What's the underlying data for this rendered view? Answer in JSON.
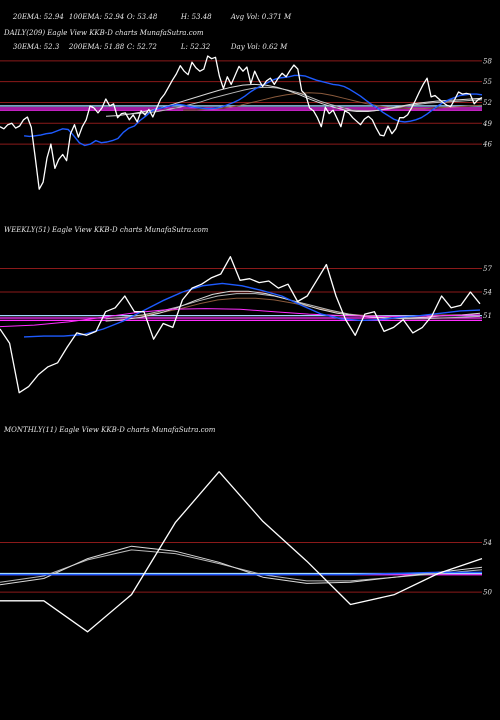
{
  "header": {
    "stats": [
      [
        "20EMA: 52.94",
        "100EMA: 52.94",
        "O: 53.48",
        "H: 53.48",
        "Avg Vol: 0.371 M"
      ],
      [
        "30EMA: 52.3",
        "200EMA: 51.88",
        "C: 52.72",
        "L: 52.32",
        "Day Vol: 0.62 M"
      ]
    ]
  },
  "colors": {
    "background": "#000000",
    "price_line": "#ffffff",
    "ema_fast": "#1e5bff",
    "ema_slow_1": "#d9d9d9",
    "ema_slow_2": "#b8b8b8",
    "ema_brown": "#8a5a3c",
    "support_magenta": "#ff2cff",
    "support_cyan": "#9fd6ff",
    "level_line": "#8b1a1a"
  },
  "chart_data": [
    {
      "type": "line",
      "title": "DAILY(209) Eagle  View  KKB-D charts MunafaSutra.com",
      "levels": [
        58,
        55,
        52,
        49,
        46
      ],
      "ylim": [
        36.5,
        61
      ],
      "support_levels": [
        50.9,
        51.2,
        51.5
      ],
      "price": [
        48.5,
        48.2,
        48.8,
        49,
        48.3,
        48.6,
        49.5,
        49.9,
        48.4,
        44,
        39.5,
        40.5,
        44,
        46,
        42.5,
        43.8,
        44.5,
        43.6,
        47.5,
        48.8,
        47,
        48.5,
        49.5,
        51.5,
        51.2,
        50.5,
        51.2,
        52.5,
        51.5,
        51.8,
        49.8,
        50.4,
        50.5,
        49.5,
        50.2,
        49.2,
        50.8,
        50.2,
        51,
        49.9,
        51.2,
        52.5,
        53.2,
        54.2,
        55.2,
        56.1,
        57.3,
        56.5,
        56,
        57.8,
        57,
        56.5,
        56.8,
        58.7,
        58.3,
        58.5,
        55.8,
        54,
        55.7,
        54.6,
        55.9,
        57.2,
        56.5,
        57.1,
        54.7,
        56.5,
        55.3,
        54.3,
        55.1,
        55.5,
        54.6,
        55.5,
        56.2,
        55.7,
        56.6,
        57.4,
        56.8,
        53.7,
        53.1,
        51.2,
        50.8,
        49.8,
        48.5,
        51.3,
        50.4,
        50.9,
        49.7,
        48.5,
        50.8,
        50.5,
        49.8,
        49.3,
        48.8,
        49.6,
        50,
        49.5,
        48.3,
        47.3,
        47.2,
        48.6,
        47.5,
        48.2,
        49.8,
        49.8,
        50.2,
        51.2,
        52.3,
        53.5,
        54.6,
        55.5,
        52.8,
        53,
        52.5,
        52,
        51.6,
        51.4,
        52.4,
        53.5,
        53.2,
        53.3,
        53.2,
        51.8,
        52.4,
        52.7
      ],
      "ema_fast": [
        47.2,
        47.1,
        47.2,
        47.3,
        47.5,
        47.6,
        47.9,
        48.2,
        48.1,
        47.2,
        46.2,
        45.8,
        46,
        46.5,
        46.2,
        46.3,
        46.5,
        46.8,
        47.7,
        48.3,
        48.6,
        49.4,
        50,
        50.7,
        51.1,
        51.2,
        51.4,
        51.6,
        51.7,
        51.6,
        51.4,
        51.3,
        51.2,
        51.1,
        51.1,
        51.2,
        51.4,
        51.7,
        52,
        52.4,
        52.9,
        53.5,
        54,
        54.4,
        54.8,
        55.2,
        55.5,
        55.6,
        55.7,
        55.9,
        55.9,
        55.8,
        55.5,
        55.2,
        55,
        54.8,
        54.6,
        54.5,
        54.3,
        53.9,
        53.4,
        52.9,
        52.3,
        51.7,
        51.2,
        50.6,
        50.1,
        49.6,
        49.3,
        49.2,
        49.3,
        49.5,
        49.8,
        50.3,
        50.9,
        51.5,
        52,
        52.4,
        52.7,
        53,
        53.1,
        53.2,
        53.2,
        53.1
      ],
      "ema_slow_1": [
        50,
        50.1,
        50.3,
        50.6,
        50.9,
        51.3,
        51.8,
        52.3,
        52.8,
        53.3,
        53.8,
        54.2,
        54.5,
        54.6,
        54.5,
        54.2,
        53.7,
        53.1,
        52.4,
        51.8,
        51.3,
        50.9,
        50.7,
        50.7,
        50.9,
        51.2,
        51.5,
        51.8,
        52,
        52.2,
        52.3,
        52.4,
        52.5,
        52.6
      ],
      "ema_slow_2": [
        50.3,
        50.4,
        50.5,
        50.7,
        51,
        51.3,
        51.7,
        52.1,
        52.6,
        53,
        53.4,
        53.8,
        54.1,
        54.2,
        54.1,
        53.8,
        53.4,
        52.8,
        52.2,
        51.7,
        51.3,
        50.9,
        50.8,
        50.8,
        51,
        51.2,
        51.5,
        51.7,
        51.9,
        52,
        52.1,
        52.2,
        52.3,
        52.4
      ],
      "ema_brown": [
        50.9,
        50.9,
        51,
        51.1,
        51.3,
        51.6,
        52,
        52.4,
        52.8,
        53.1,
        53.3,
        53.4,
        53.3,
        53,
        52.6,
        52.2,
        51.8,
        51.5,
        51.3,
        51.2,
        51.1,
        51.1,
        51.2,
        51.3,
        51.4,
        51.5,
        51.6
      ]
    },
    {
      "type": "line",
      "title": "WEEKLY(51) Eagle  View  KKB-D charts MunafaSutra.com",
      "levels": [
        57,
        54,
        51
      ],
      "ylim": [
        39,
        61
      ],
      "support_levels": [
        50.4,
        50.7,
        51.0
      ],
      "price": [
        49.3,
        47.5,
        41.2,
        42,
        43.5,
        44.5,
        45,
        47,
        48.8,
        48.5,
        49,
        51.5,
        52,
        53.5,
        51.5,
        51.5,
        48,
        50,
        49.5,
        53,
        54.5,
        55,
        55.8,
        56.3,
        58.5,
        55.5,
        55.7,
        55.2,
        55.4,
        54.5,
        55,
        52.8,
        53.5,
        55.5,
        57.5,
        53.5,
        50.5,
        48.5,
        51.2,
        51.5,
        49,
        49.5,
        50.5,
        48.8,
        49.5,
        51,
        53.5,
        52,
        52.3,
        54,
        52.5
      ],
      "ema_fast": [
        48.3,
        48.4,
        48.4,
        48.6,
        49.3,
        50.3,
        51.6,
        52.9,
        54,
        54.8,
        55.1,
        54.8,
        54.2,
        53.5,
        52.3,
        51.2,
        50.6,
        50.4,
        50.5,
        50.8,
        51,
        51.3,
        51.6,
        51.7
      ],
      "ema_slow_1": [
        50.3,
        50.5,
        50.8,
        51.3,
        52,
        52.9,
        53.7,
        54.1,
        54.1,
        53.8,
        53.2,
        52.5,
        51.8,
        51.3,
        51,
        50.8,
        50.7,
        50.7,
        50.8,
        51,
        51.1,
        51.3
      ],
      "ema_slow_2": [
        50.6,
        50.8,
        51.1,
        51.6,
        52.2,
        52.9,
        53.5,
        53.8,
        53.8,
        53.5,
        52.9,
        52.3,
        51.7,
        51.2,
        50.9,
        50.7,
        50.6,
        50.6,
        50.7,
        50.8,
        50.9
      ],
      "ema_brown": [
        50.6,
        50.8,
        51,
        51.4,
        51.9,
        52.5,
        53,
        53.2,
        53.2,
        53,
        52.6,
        52.1,
        51.6,
        51.2,
        51,
        50.9,
        50.9,
        51,
        51.1,
        51.1,
        51.1
      ],
      "pink_curve": [
        49.6,
        49.8,
        50.2,
        50.8,
        51.4,
        51.8,
        51.9,
        51.8,
        51.5,
        51.2,
        51,
        50.9,
        50.9,
        51,
        51.1
      ]
    },
    {
      "type": "line",
      "title": "MONTHLY(11) Eagle  View  KKB-D charts MunafaSutra.com",
      "levels": [
        54,
        50
      ],
      "ylim": [
        40.5,
        62.5
      ],
      "support_levels": [
        51.4,
        51.5
      ],
      "price": [
        49.3,
        49.3,
        46.8,
        49.8,
        55.6,
        59.7,
        55.7,
        52.5,
        49,
        49.8,
        51.5,
        52.7
      ],
      "ema_slow_1": [
        50.6,
        51.1,
        52.7,
        53.7,
        53.3,
        52.4,
        51.2,
        50.7,
        50.8,
        51.2,
        51.6,
        52
      ],
      "ema_slow_2": [
        50.8,
        51.3,
        52.6,
        53.4,
        53.1,
        52.3,
        51.4,
        50.9,
        50.9,
        51.2,
        51.5,
        51.8
      ],
      "ema_fast": [
        51.4,
        51.4,
        51.4,
        51.4,
        51.4,
        51.4,
        51.4,
        51.4,
        51.4,
        51.5,
        51.6,
        51.6
      ]
    }
  ]
}
